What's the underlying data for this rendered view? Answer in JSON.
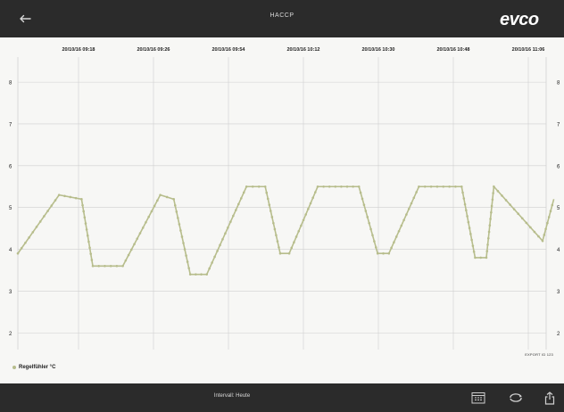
{
  "header": {
    "title": "HACCP",
    "brand": "EVCO",
    "back_icon": "arrow-left-icon"
  },
  "footer": {
    "interval_label": "Intervall: Heute",
    "buttons": [
      "calendar-icon",
      "refresh-icon",
      "share-icon"
    ]
  },
  "colors": {
    "bar": "#2b2b2b",
    "series": "#b7bd8c",
    "grid": "#cfcfcf",
    "plot_bg": "#f7f7f5"
  },
  "chart_data": {
    "type": "line",
    "time_labels": [
      "20/10/16 09:18",
      "20/10/16 09:26",
      "20/10/16 09:54",
      "20/10/16 10:12",
      "20/10/16 10:30",
      "20/10/16 10:48",
      "20/10/16 11:06"
    ],
    "y_ticks": [
      2,
      3,
      4,
      5,
      6,
      7,
      8
    ],
    "ylim": [
      1.6,
      8.6
    ],
    "grid": true,
    "legend_position": "bottom-left",
    "series": [
      {
        "name": "Regelfühler °C",
        "x": [
          0.0,
          0.55,
          0.85,
          1.0,
          1.4,
          1.9,
          2.08,
          2.3,
          2.52,
          3.05,
          3.3,
          3.5,
          3.62,
          4.0,
          4.55,
          4.8,
          4.95,
          5.35,
          5.92,
          6.1,
          6.25,
          6.35,
          7.0,
          7.15
        ],
        "y": [
          3.9,
          5.3,
          5.2,
          3.6,
          3.6,
          5.3,
          5.2,
          3.4,
          3.4,
          5.5,
          5.5,
          3.9,
          3.9,
          5.5,
          5.5,
          3.9,
          3.9,
          5.5,
          5.5,
          3.8,
          3.8,
          5.5,
          4.2,
          5.2
        ]
      }
    ],
    "footnote": "EXPORT ID 123"
  }
}
